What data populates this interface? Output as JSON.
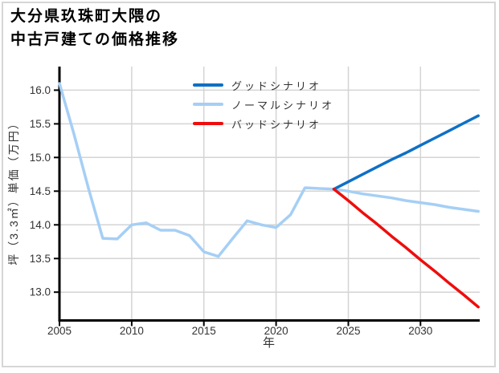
{
  "window": {
    "background": "#ffffff",
    "border_color": "#d6d6d6"
  },
  "header": {
    "title_line1": "大分県玖珠町大隈の",
    "title_line2": "中古戸建ての価格推移"
  },
  "chart_data": {
    "type": "line",
    "title": "大分県玖珠町大隈の中古戸建ての価格推移",
    "xlabel": "年",
    "ylabel": "坪（3.3㎡）単価（万円）",
    "xlim": [
      2005,
      2034.1
    ],
    "ylim": [
      12.58,
      16.35
    ],
    "xticks": [
      2005,
      2010,
      2015,
      2020,
      2025,
      2030
    ],
    "yticks": [
      13.0,
      13.5,
      14.0,
      14.5,
      15.0,
      15.5,
      16.0
    ],
    "grid": true,
    "legend_position": "top-center-inside",
    "colors": {
      "grid": "#d4d4d4",
      "axis": "#000000",
      "tick_text": "#333333"
    },
    "draw_order": [
      1,
      0,
      2
    ],
    "series": [
      {
        "id": "good-scenario",
        "name": "グッドシナリオ",
        "color": "#0e70c5",
        "x": [
          2024,
          2025,
          2026,
          2027,
          2028,
          2029,
          2030,
          2031,
          2032,
          2033,
          2034
        ],
        "y": [
          14.53,
          14.64,
          14.75,
          14.86,
          14.97,
          15.07,
          15.18,
          15.29,
          15.4,
          15.51,
          15.62
        ]
      },
      {
        "id": "normal-scenario",
        "name": "ノーマルシナリオ",
        "color": "#a5cff5",
        "x": [
          2005,
          2006,
          2007,
          2008,
          2009,
          2010,
          2011,
          2012,
          2013,
          2014,
          2015,
          2016,
          2017,
          2018,
          2019,
          2020,
          2021,
          2022,
          2023,
          2024,
          2025,
          2026,
          2027,
          2028,
          2029,
          2030,
          2031,
          2032,
          2033,
          2034
        ],
        "y": [
          16.1,
          15.35,
          14.55,
          13.8,
          13.79,
          14.0,
          14.03,
          13.92,
          13.92,
          13.84,
          13.6,
          13.53,
          13.8,
          14.06,
          14.0,
          13.96,
          14.15,
          14.55,
          14.54,
          14.53,
          14.5,
          14.46,
          14.43,
          14.4,
          14.36,
          14.33,
          14.3,
          14.26,
          14.23,
          14.2
        ]
      },
      {
        "id": "bad-scenario",
        "name": "バッドシナリオ",
        "color": "#ee0d0d",
        "x": [
          2024,
          2025,
          2026,
          2027,
          2028,
          2029,
          2030,
          2031,
          2032,
          2033,
          2034
        ],
        "y": [
          14.53,
          14.36,
          14.18,
          14.01,
          13.83,
          13.66,
          13.48,
          13.31,
          13.13,
          12.96,
          12.78
        ]
      }
    ]
  }
}
